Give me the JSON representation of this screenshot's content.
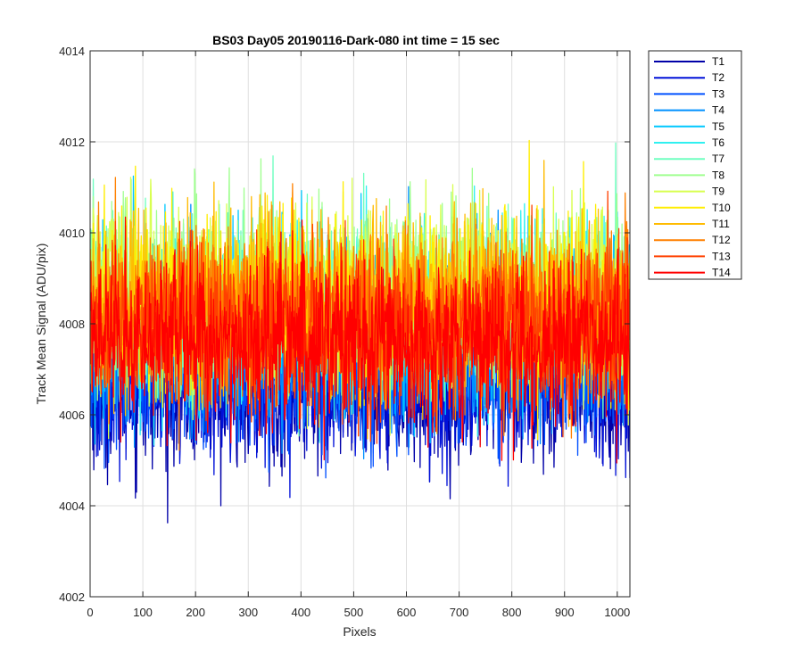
{
  "chart_data": {
    "type": "line",
    "title": "BS03 Day05 20190116-Dark-080 int time = 15 sec",
    "xlabel": "Pixels",
    "ylabel": "Track Mean Signal (ADU/pix)",
    "xlim": [
      0,
      1024
    ],
    "ylim": [
      4002,
      4014
    ],
    "xticks": [
      0,
      100,
      200,
      300,
      400,
      500,
      600,
      700,
      800,
      900,
      1000
    ],
    "yticks": [
      4002,
      4004,
      4006,
      4008,
      4010,
      4012,
      4014
    ],
    "grid": true,
    "legend_position": "outside-top-right",
    "n_points": 1024,
    "series": [
      {
        "name": "T1",
        "color": "#0000a8",
        "mean": 4006.6,
        "spread": 0.85,
        "min": 4002.6,
        "max": 4010.2
      },
      {
        "name": "T2",
        "color": "#0010d8",
        "mean": 4006.8,
        "spread": 0.85,
        "min": 4003.7,
        "max": 4010.4
      },
      {
        "name": "T3",
        "color": "#0050ff",
        "mean": 4007.0,
        "spread": 0.85,
        "min": 4004.6,
        "max": 4010.8
      },
      {
        "name": "T4",
        "color": "#0090ff",
        "mean": 4007.6,
        "spread": 0.9,
        "min": 4005.0,
        "max": 4012.6
      },
      {
        "name": "T5",
        "color": "#00c8ff",
        "mean": 4008.0,
        "spread": 0.95,
        "min": 4005.2,
        "max": 4012.8
      },
      {
        "name": "T6",
        "color": "#30f0f0",
        "mean": 4008.3,
        "spread": 0.95,
        "min": 4005.3,
        "max": 4012.4
      },
      {
        "name": "T7",
        "color": "#70ffc0",
        "mean": 4008.5,
        "spread": 0.95,
        "min": 4005.4,
        "max": 4012.6
      },
      {
        "name": "T8",
        "color": "#a0ff90",
        "mean": 4008.6,
        "spread": 0.95,
        "min": 4005.4,
        "max": 4012.6
      },
      {
        "name": "T9",
        "color": "#d8ff50",
        "mean": 4008.6,
        "spread": 0.95,
        "min": 4005.3,
        "max": 4012.8
      },
      {
        "name": "T10",
        "color": "#ffee00",
        "mean": 4008.5,
        "spread": 0.95,
        "min": 4005.3,
        "max": 4012.8
      },
      {
        "name": "T11",
        "color": "#ffbb00",
        "mean": 4008.4,
        "spread": 0.95,
        "min": 4005.2,
        "max": 4012.4
      },
      {
        "name": "T12",
        "color": "#ff8000",
        "mean": 4008.2,
        "spread": 0.9,
        "min": 4005.1,
        "max": 4012.7
      },
      {
        "name": "T13",
        "color": "#ff4000",
        "mean": 4007.9,
        "spread": 0.9,
        "min": 4004.8,
        "max": 4011.8
      },
      {
        "name": "T14",
        "color": "#ff0000",
        "mean": 4007.6,
        "spread": 0.9,
        "min": 4003.7,
        "max": 4011.0
      }
    ]
  }
}
